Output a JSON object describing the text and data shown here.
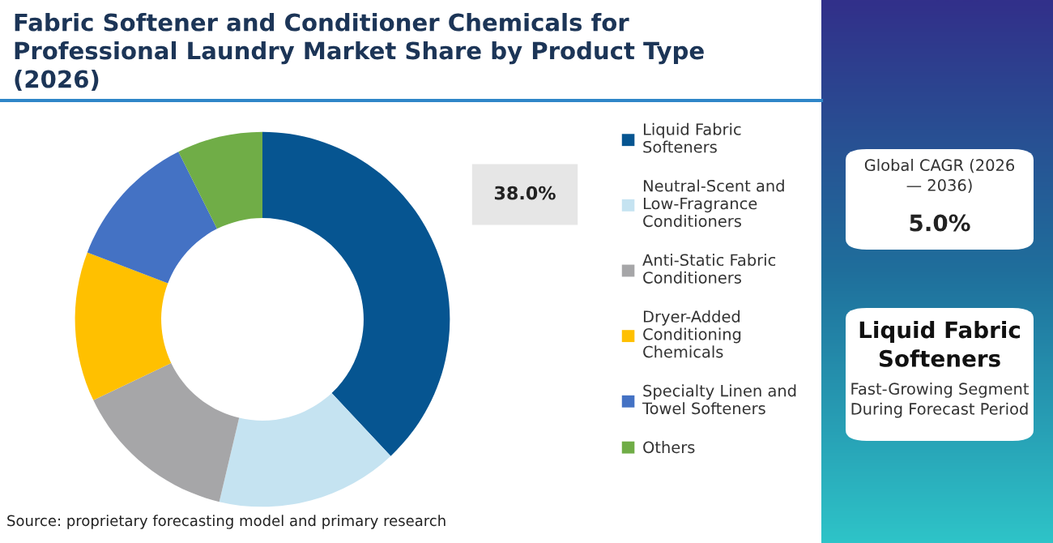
{
  "chart_data": {
    "type": "donut",
    "title": "Fabric Softener and Conditioner Chemicals for Professional Laundry Market Share by Product Type (2026)",
    "categories": [
      "Liquid Fabric Softeners",
      "Neutral-Scent and Low-Fragrance Conditioners",
      "Anti-Static Fabric Conditioners",
      "Dryer-Added Conditioning Chemicals",
      "Specialty Linen and Towel Softeners",
      "Others"
    ],
    "values": [
      38.0,
      15.7,
      14.2,
      12.9,
      11.8,
      7.4
    ],
    "colors": [
      "#065591",
      "#c5e3f1",
      "#a6a6a8",
      "#ffc000",
      "#4472c4",
      "#70ad47"
    ],
    "value_labels": [
      "38.0%",
      null,
      null,
      null,
      null,
      null
    ],
    "legend": "right",
    "annotations": [
      "Global CAGR (2026 — 2036)",
      "5.0%",
      "Liquid Fabric Softeners",
      "Fast-Growing Segment During Forecast Period",
      "Source: proprietary forecasting model and primary research"
    ]
  }
}
